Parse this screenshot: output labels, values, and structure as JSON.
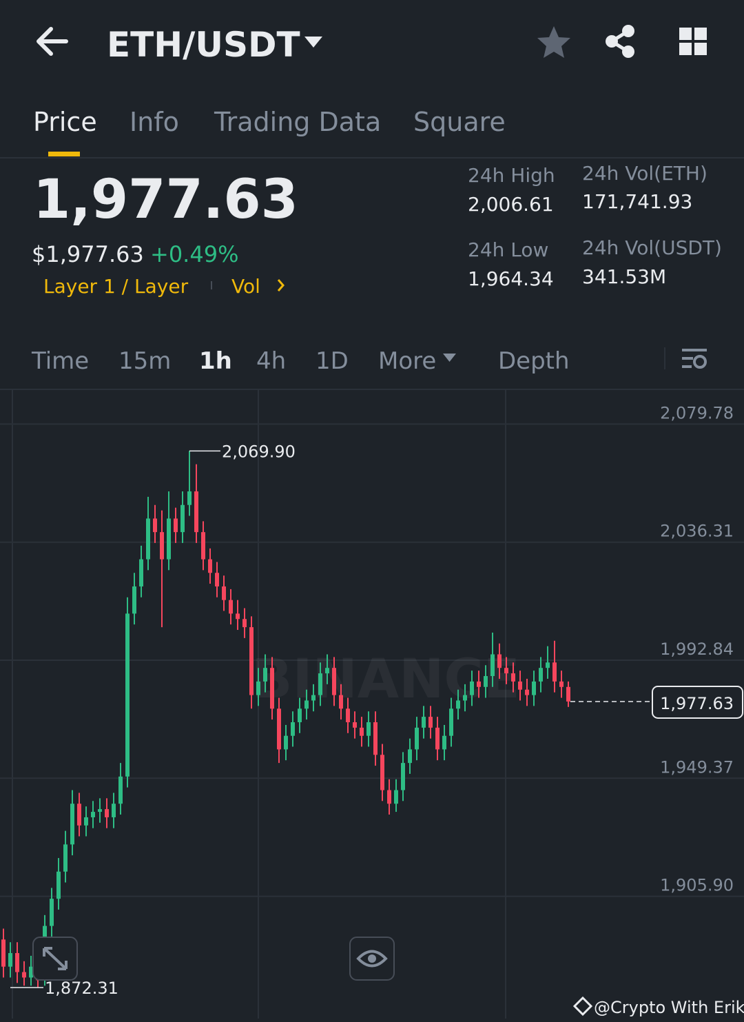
{
  "header": {
    "pair": "ETH/USDT"
  },
  "tabs": [
    "Price",
    "Info",
    "Trading Data",
    "Square"
  ],
  "price": {
    "last": "1,977.63",
    "usd": "$1,977.63",
    "change": "+0.49%",
    "tags": [
      "Layer 1 / Layer",
      "Vol"
    ]
  },
  "stats": [
    {
      "label": "24h High",
      "value": "2,006.61"
    },
    {
      "label": "24h Vol(ETH)",
      "value": "171,741.93"
    },
    {
      "label": "24h Low",
      "value": "1,964.34"
    },
    {
      "label": "24h Vol(USDT)",
      "value": "341.53M"
    }
  ],
  "intervals": [
    "Time",
    "15m",
    "1h",
    "4h",
    "1D",
    "More",
    "Depth"
  ],
  "chart_data": {
    "type": "candlestick",
    "up_color": "#2ebd85",
    "down_color": "#f6465d",
    "open": [
      1890,
      1880,
      1885,
      1878,
      1876,
      1880,
      1875,
      1895,
      1905,
      1915,
      1925,
      1940,
      1932,
      1935,
      1937,
      1938,
      1935,
      1940,
      1950,
      2010,
      2020,
      2030,
      2045,
      2040,
      2030,
      2045,
      2040,
      2050,
      2055,
      2040,
      2030,
      2025,
      2020,
      2015,
      2010,
      2008,
      2005,
      1980,
      1985,
      1990,
      1975,
      1960,
      1965,
      1970,
      1975,
      1978,
      1980,
      1988,
      1990,
      1980,
      1975,
      1970,
      1968,
      1965,
      1970,
      1958,
      1945,
      1940,
      1945,
      1955,
      1960,
      1968,
      1972,
      1968,
      1960,
      1965,
      1975,
      1978,
      1980,
      1985,
      1983,
      1987,
      1995,
      1990,
      1988,
      1985,
      1982,
      1980,
      1985,
      1990,
      1992,
      1985,
      1983
    ],
    "high": [
      1894,
      1889,
      1889,
      1882,
      1884,
      1884,
      1899,
      1909,
      1920,
      1930,
      1945,
      1944,
      1939,
      1941,
      1942,
      1942,
      1944,
      1955,
      2016,
      2025,
      2035,
      2053,
      2050,
      2048,
      2055,
      2049,
      2055,
      2069.9,
      2065,
      2044,
      2034,
      2029,
      2024,
      2019,
      2015,
      2012,
      2009,
      1990,
      1995,
      1994,
      1979,
      1969,
      1974,
      1979,
      1982,
      1984,
      1992,
      1995,
      1994,
      1984,
      1979,
      1974,
      1972,
      1974,
      1974,
      1962,
      1949,
      1949,
      1959,
      1964,
      1972,
      1976,
      1976,
      1972,
      1969,
      1979,
      1982,
      1984,
      1989,
      1989,
      1991,
      2003,
      1999,
      1994,
      1992,
      1989,
      1986,
      1989,
      1994,
      1998,
      2000,
      1989,
      1985
    ],
    "low": [
      1876,
      1876,
      1874,
      1873,
      1873,
      1872.31,
      1873,
      1891,
      1901,
      1911,
      1921,
      1928,
      1928,
      1931,
      1933,
      1931,
      1931,
      1936,
      1946,
      2006,
      2016,
      2026,
      2036,
      2005,
      2026,
      2036,
      2036,
      2046,
      2036,
      2026,
      2021,
      2016,
      2011,
      2006,
      2004,
      2001,
      1975,
      1976,
      1981,
      1971,
      1955,
      1956,
      1961,
      1966,
      1971,
      1974,
      1976,
      1984,
      1976,
      1971,
      1966,
      1964,
      1961,
      1961,
      1954,
      1941,
      1936,
      1937,
      1941,
      1951,
      1956,
      1964,
      1964,
      1956,
      1956,
      1961,
      1971,
      1974,
      1976,
      1979,
      1979,
      1983,
      1986,
      1984,
      1981,
      1978,
      1976,
      1976,
      1981,
      1986,
      1981,
      1979,
      1975.63
    ],
    "close": [
      1880,
      1885,
      1878,
      1876,
      1880,
      1875,
      1895,
      1905,
      1915,
      1925,
      1940,
      1932,
      1935,
      1937,
      1938,
      1935,
      1940,
      1950,
      2010,
      2020,
      2030,
      2045,
      2040,
      2030,
      2045,
      2040,
      2050,
      2055,
      2040,
      2030,
      2025,
      2020,
      2015,
      2010,
      2008,
      2005,
      1980,
      1985,
      1990,
      1975,
      1960,
      1965,
      1970,
      1975,
      1978,
      1980,
      1988,
      1990,
      1980,
      1975,
      1970,
      1968,
      1965,
      1970,
      1958,
      1945,
      1940,
      1945,
      1955,
      1960,
      1968,
      1972,
      1968,
      1960,
      1965,
      1975,
      1978,
      1980,
      1985,
      1983,
      1987,
      1995,
      1990,
      1988,
      1985,
      1982,
      1980,
      1985,
      1990,
      1992,
      1985,
      1983,
      1977.63
    ],
    "ylim": [
      1860.89,
      2092.31
    ],
    "yticks": [
      {
        "value": 2079.78,
        "label": "2,079.78"
      },
      {
        "value": 2036.31,
        "label": "2,036.31"
      },
      {
        "value": 1992.84,
        "label": "1,992.84"
      },
      {
        "value": 1949.37,
        "label": "1,949.37"
      },
      {
        "value": 1905.9,
        "label": "1,905.90"
      }
    ],
    "high_marker": {
      "value": 2069.9,
      "label": "2,069.90"
    },
    "low_marker": {
      "value": 1872.31,
      "label": "1,872.31"
    },
    "last_price": {
      "value": 1977.63,
      "label": "1,977.63"
    }
  },
  "watermark": "BINANCE",
  "credit": "@Crypto With Erik"
}
